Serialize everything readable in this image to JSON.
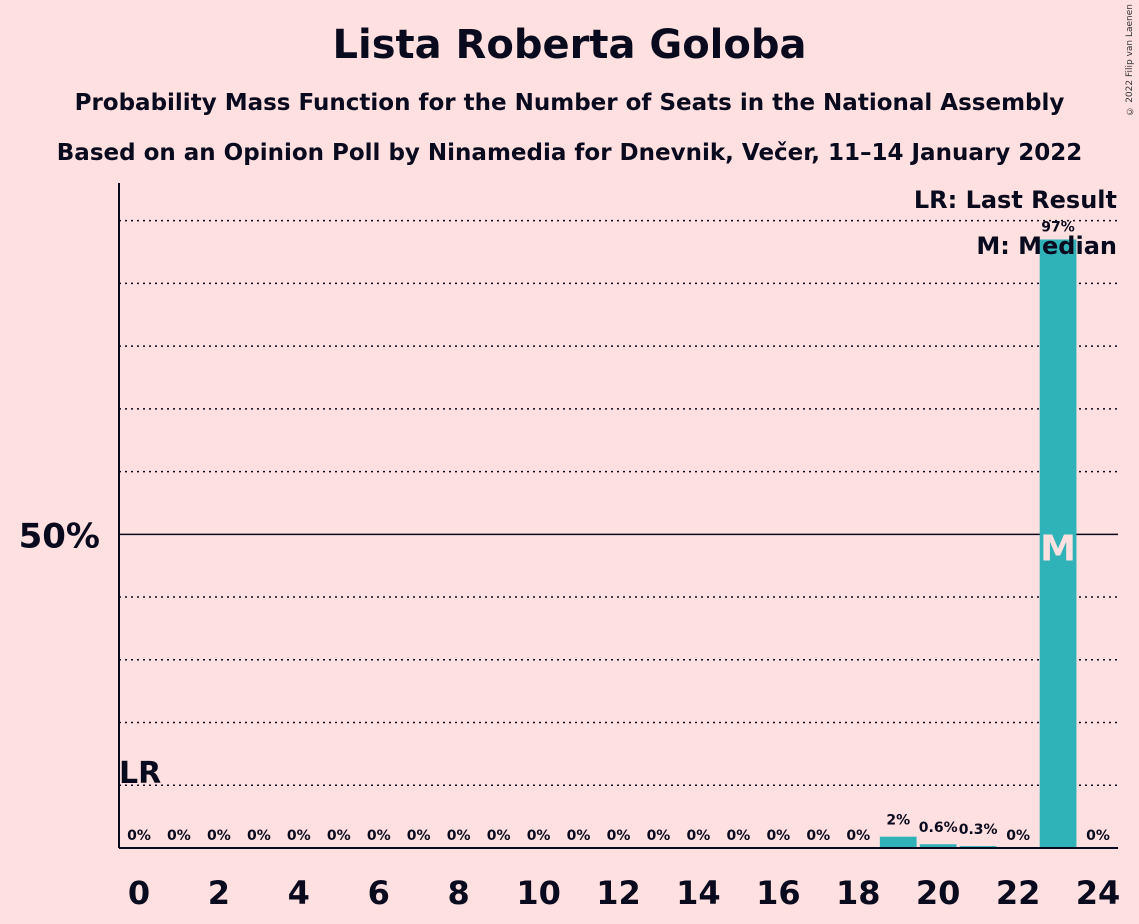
{
  "title": "Lista Roberta Goloba",
  "subtitle": "Probability Mass Function for the Number of Seats in the National Assembly",
  "subtitle2": "Based on an Opinion Poll by Ninamedia for Dnevnik, Večer, 11–14 January 2022",
  "copyright": "© 2022 Filip van Laenen",
  "legend": {
    "last_result": "LR: Last Result",
    "median": "M: Median"
  },
  "colors": {
    "background": "#FFE0E0",
    "bar": "#2FB3B8",
    "text": "#0a0a1e"
  },
  "chart_data": {
    "type": "bar",
    "x": [
      0,
      1,
      2,
      3,
      4,
      5,
      6,
      7,
      8,
      9,
      10,
      11,
      12,
      13,
      14,
      15,
      16,
      17,
      18,
      19,
      20,
      21,
      22,
      23,
      24
    ],
    "values": [
      0,
      0,
      0,
      0,
      0,
      0,
      0,
      0,
      0,
      0,
      0,
      0,
      0,
      0,
      0,
      0,
      0,
      0,
      0,
      1.8,
      0.6,
      0.3,
      0,
      97,
      0
    ],
    "value_labels": [
      "0%",
      "0%",
      "0%",
      "0%",
      "0%",
      "0%",
      "0%",
      "0%",
      "0%",
      "0%",
      "0%",
      "0%",
      "0%",
      "0%",
      "0%",
      "0%",
      "0%",
      "0%",
      "0%",
      "2%",
      "0.6%",
      "0.3%",
      "0%",
      "97%",
      "0%"
    ],
    "x_ticks": [
      "0",
      "2",
      "4",
      "6",
      "8",
      "10",
      "12",
      "14",
      "16",
      "18",
      "20",
      "22",
      "24"
    ],
    "y_tick_label": "50%",
    "y_tick_value": 50,
    "ylim": [
      0,
      106
    ],
    "grid_step": 10,
    "grid": true,
    "last_result_seat": 0,
    "last_result_label": "LR",
    "median_seat": 23,
    "median_label": "M"
  }
}
